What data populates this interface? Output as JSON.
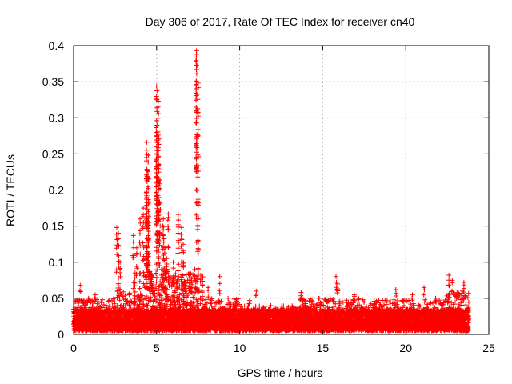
{
  "chart_data": {
    "type": "scatter",
    "title": "Day 306 of 2017, Rate Of TEC Index for receiver cn40",
    "xlabel": "GPS time / hours",
    "ylabel": "ROTI / TECUs",
    "xlim": [
      0,
      25
    ],
    "ylim": [
      0,
      0.4
    ],
    "xticks": [
      0,
      5,
      10,
      15,
      20,
      25
    ],
    "yticks": [
      0,
      0.05,
      0.1,
      0.15,
      0.2,
      0.25,
      0.3,
      0.35,
      0.4
    ],
    "xtick_labels": [
      "0",
      "5",
      "10",
      "15",
      "20",
      "25"
    ],
    "ytick_labels": [
      "0",
      "0.05",
      "0.1",
      "0.15",
      "0.2",
      "0.25",
      "0.3",
      "0.35",
      "0.4"
    ],
    "grid": true,
    "marker": "+",
    "series_color": "#ff0000",
    "x_extent": [
      0.0,
      23.8
    ],
    "background_band": {
      "x_start": 0.0,
      "x_end": 23.8,
      "y_min": 0.005,
      "y_max": 0.035
    },
    "peaks": [
      {
        "x": 0.4,
        "y": 0.068
      },
      {
        "x": 0.9,
        "y": 0.05
      },
      {
        "x": 1.3,
        "y": 0.055
      },
      {
        "x": 2.6,
        "y": 0.148
      },
      {
        "x": 2.7,
        "y": 0.14
      },
      {
        "x": 2.8,
        "y": 0.1
      },
      {
        "x": 2.7,
        "y": 0.078
      },
      {
        "x": 3.6,
        "y": 0.137
      },
      {
        "x": 3.8,
        "y": 0.12
      },
      {
        "x": 3.7,
        "y": 0.085
      },
      {
        "x": 4.0,
        "y": 0.16
      },
      {
        "x": 4.2,
        "y": 0.175
      },
      {
        "x": 4.4,
        "y": 0.266
      },
      {
        "x": 4.5,
        "y": 0.248
      },
      {
        "x": 4.4,
        "y": 0.217
      },
      {
        "x": 4.4,
        "y": 0.192
      },
      {
        "x": 4.5,
        "y": 0.17
      },
      {
        "x": 4.5,
        "y": 0.137
      },
      {
        "x": 4.4,
        "y": 0.12
      },
      {
        "x": 4.6,
        "y": 0.095
      },
      {
        "x": 4.7,
        "y": 0.08
      },
      {
        "x": 5.0,
        "y": 0.344
      },
      {
        "x": 5.1,
        "y": 0.323
      },
      {
        "x": 5.0,
        "y": 0.296
      },
      {
        "x": 5.1,
        "y": 0.276
      },
      {
        "x": 5.0,
        "y": 0.26
      },
      {
        "x": 5.1,
        "y": 0.255
      },
      {
        "x": 5.2,
        "y": 0.214
      },
      {
        "x": 5.1,
        "y": 0.2
      },
      {
        "x": 5.4,
        "y": 0.16
      },
      {
        "x": 5.4,
        "y": 0.145
      },
      {
        "x": 5.5,
        "y": 0.12
      },
      {
        "x": 5.3,
        "y": 0.09
      },
      {
        "x": 5.6,
        "y": 0.105
      },
      {
        "x": 6.0,
        "y": 0.1
      },
      {
        "x": 6.3,
        "y": 0.166
      },
      {
        "x": 6.5,
        "y": 0.148
      },
      {
        "x": 6.6,
        "y": 0.125
      },
      {
        "x": 6.6,
        "y": 0.1
      },
      {
        "x": 5.7,
        "y": 0.167
      },
      {
        "x": 7.0,
        "y": 0.085
      },
      {
        "x": 7.3,
        "y": 0.09
      },
      {
        "x": 7.4,
        "y": 0.393
      },
      {
        "x": 7.4,
        "y": 0.388
      },
      {
        "x": 7.5,
        "y": 0.348
      },
      {
        "x": 7.5,
        "y": 0.16
      },
      {
        "x": 8.8,
        "y": 0.08
      },
      {
        "x": 8.1,
        "y": 0.065
      },
      {
        "x": 9.8,
        "y": 0.048
      },
      {
        "x": 10.6,
        "y": 0.047
      },
      {
        "x": 11.0,
        "y": 0.06
      },
      {
        "x": 13.7,
        "y": 0.058
      },
      {
        "x": 15.8,
        "y": 0.08
      },
      {
        "x": 15.9,
        "y": 0.07
      },
      {
        "x": 16.9,
        "y": 0.055
      },
      {
        "x": 19.4,
        "y": 0.062
      },
      {
        "x": 20.4,
        "y": 0.055
      },
      {
        "x": 21.1,
        "y": 0.065
      },
      {
        "x": 21.8,
        "y": 0.05
      },
      {
        "x": 22.6,
        "y": 0.082
      },
      {
        "x": 22.8,
        "y": 0.075
      },
      {
        "x": 23.5,
        "y": 0.072
      },
      {
        "x": 23.4,
        "y": 0.06
      }
    ],
    "activity_regions": [
      {
        "x_start": 0.0,
        "x_end": 2.4,
        "y_max": 0.05
      },
      {
        "x_start": 2.4,
        "x_end": 4.2,
        "y_max": 0.06
      },
      {
        "x_start": 4.2,
        "x_end": 7.8,
        "y_max": 0.085
      },
      {
        "x_start": 7.8,
        "x_end": 10.0,
        "y_max": 0.05
      },
      {
        "x_start": 10.0,
        "x_end": 13.5,
        "y_max": 0.04
      },
      {
        "x_start": 13.5,
        "x_end": 17.5,
        "y_max": 0.05
      },
      {
        "x_start": 17.5,
        "x_end": 22.4,
        "y_max": 0.048
      },
      {
        "x_start": 22.4,
        "x_end": 23.8,
        "y_max": 0.06
      }
    ]
  }
}
